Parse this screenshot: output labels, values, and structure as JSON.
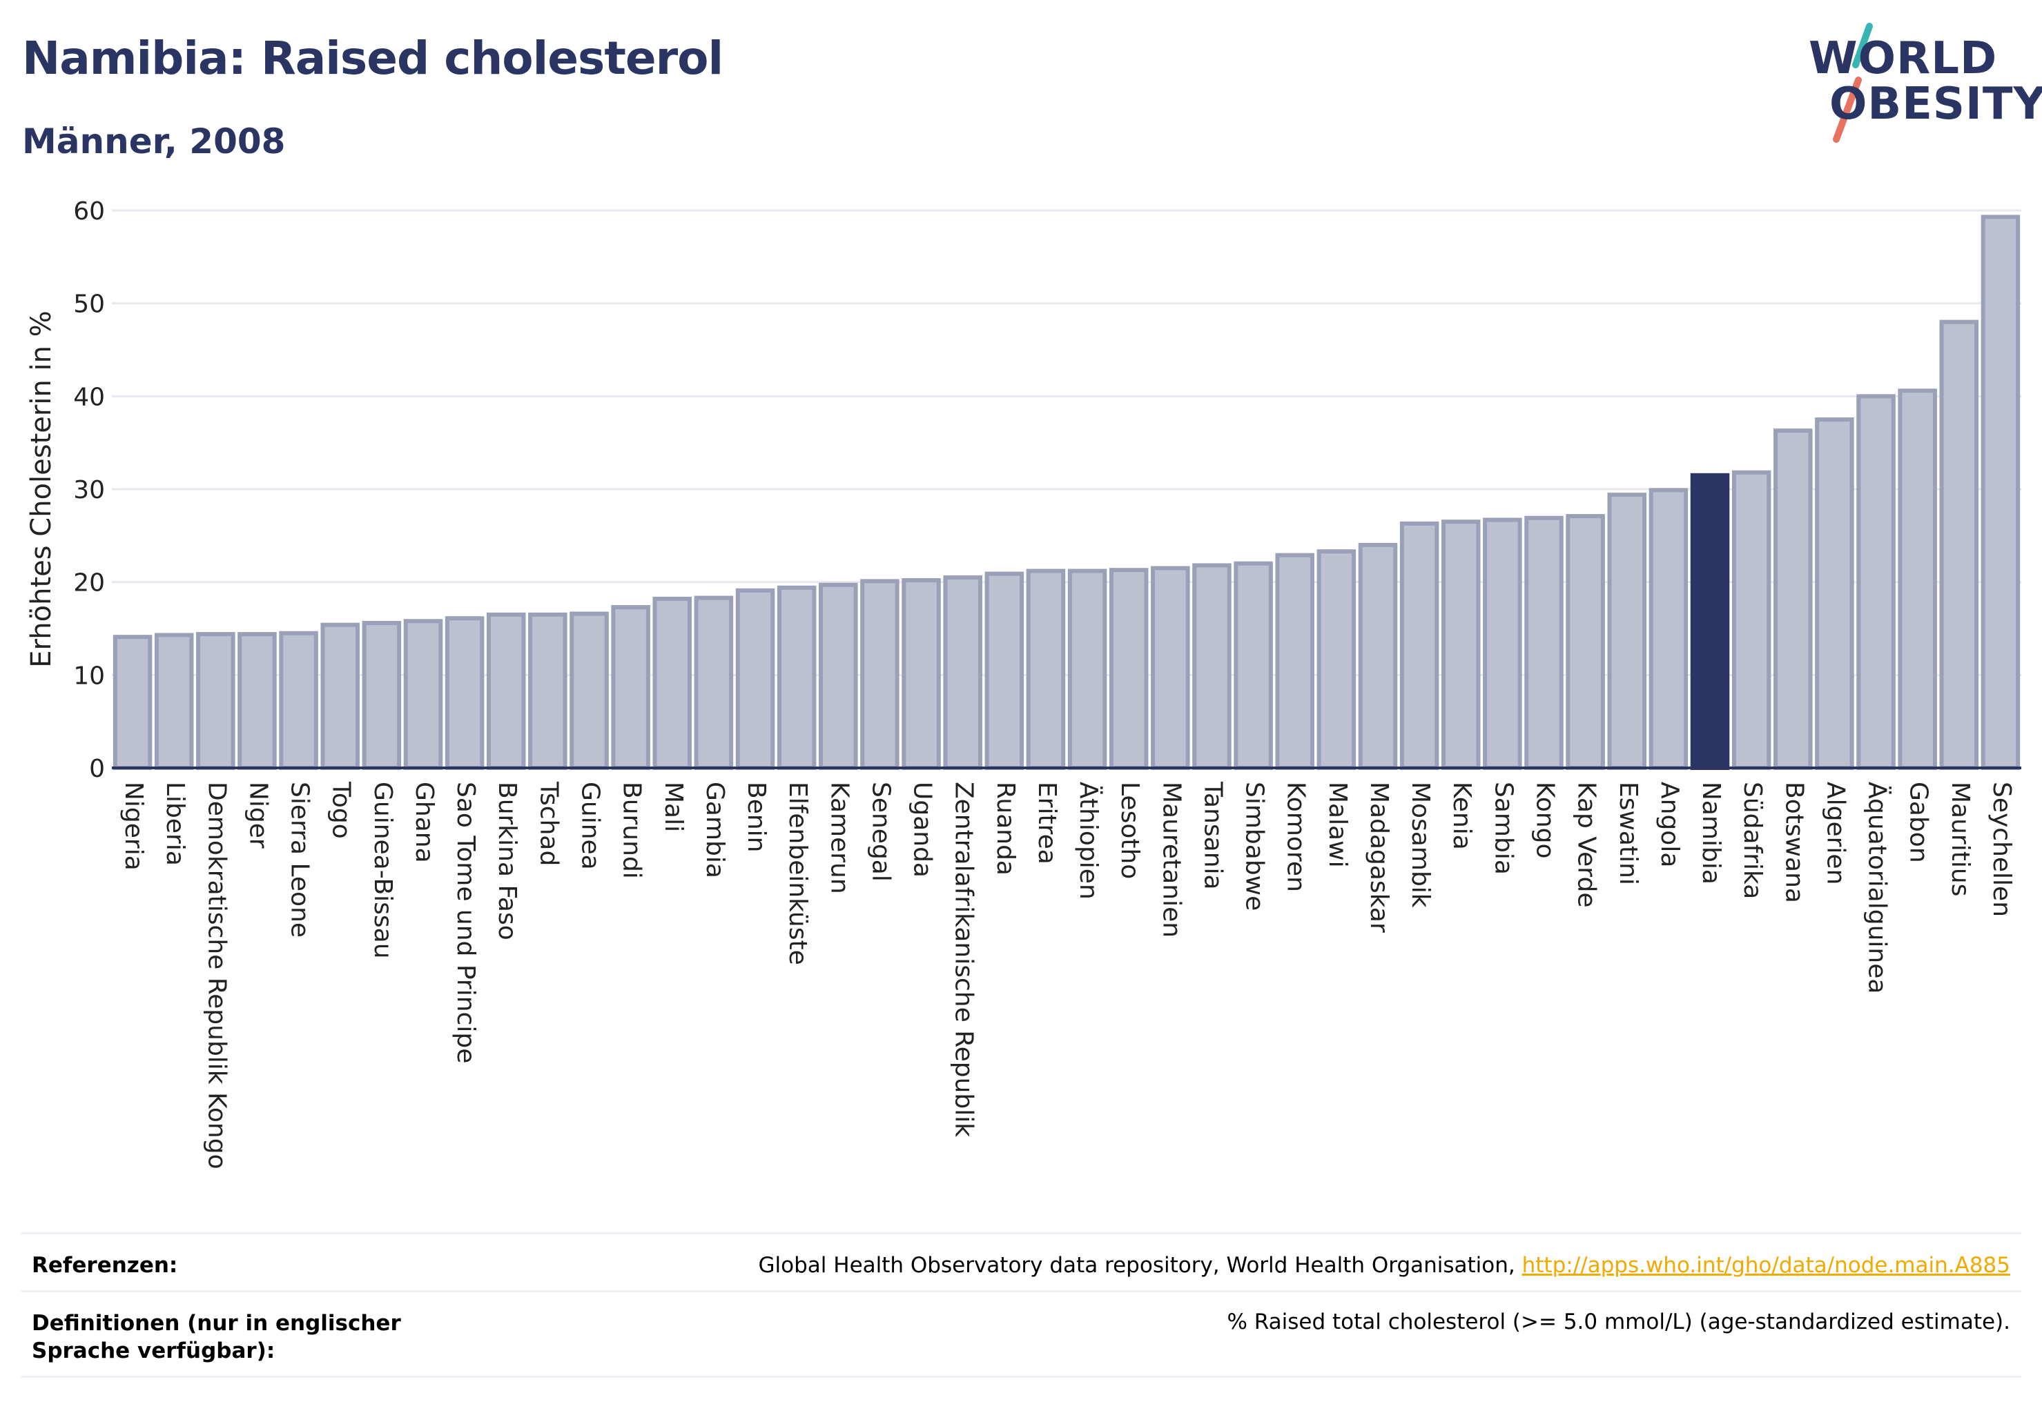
{
  "header": {
    "title": "Namibia: Raised cholesterol",
    "subtitle": "Männer, 2008"
  },
  "logo": {
    "line1": "WORLD",
    "line2": "OBESITY",
    "accent_teal": "#35b6b4",
    "accent_coral": "#e8715f"
  },
  "colors": {
    "bar_default": "#bcc0d0",
    "bar_edge": "#9aa0b8",
    "bar_highlight": "#2b3563",
    "grid": "#e6e8ee",
    "axis": "#2b3563"
  },
  "chart_data": {
    "type": "bar",
    "ylabel": "Erhöhtes Cholesterin in %",
    "ylim": [
      0,
      60
    ],
    "yticks": [
      "0",
      "10",
      "20",
      "30",
      "40",
      "50",
      "60"
    ],
    "highlight": "Namibia",
    "grid": true,
    "categories": [
      "Nigeria",
      "Liberia",
      "Demokratische Republik Kongo",
      "Niger",
      "Sierra Leone",
      "Togo",
      "Guinea-Bissau",
      "Ghana",
      "Sao Tome und Principe",
      "Burkina Faso",
      "Tschad",
      "Guinea",
      "Burundi",
      "Mali",
      "Gambia",
      "Benin",
      "Elfenbeinküste",
      "Kamerun",
      "Senegal",
      "Uganda",
      "Zentralafrikanische Republik",
      "Ruanda",
      "Eritrea",
      "Äthiopien",
      "Lesotho",
      "Mauretanien",
      "Tansania",
      "Simbabwe",
      "Komoren",
      "Malawi",
      "Madagaskar",
      "Mosambik",
      "Kenia",
      "Sambia",
      "Kongo",
      "Kap Verde",
      "Eswatini",
      "Angola",
      "Namibia",
      "Südafrika",
      "Botswana",
      "Algerien",
      "Äquatorialguinea",
      "Gabon",
      "Mauritius",
      "Seychellen"
    ],
    "values": [
      14.1,
      14.3,
      14.4,
      14.4,
      14.5,
      15.4,
      15.6,
      15.8,
      16.1,
      16.5,
      16.5,
      16.6,
      17.3,
      18.2,
      18.3,
      19.1,
      19.4,
      19.7,
      20.1,
      20.2,
      20.5,
      20.9,
      21.2,
      21.2,
      21.3,
      21.5,
      21.8,
      22.0,
      22.9,
      23.3,
      24.0,
      26.3,
      26.5,
      26.7,
      26.9,
      27.1,
      29.4,
      29.9,
      31.5,
      31.8,
      36.3,
      37.5,
      40.0,
      40.6,
      48.0,
      59.3
    ]
  },
  "footer": {
    "ref_label": "Referenzen:",
    "ref_text": "Global Health Observatory data repository, World Health Organisation, ",
    "ref_link": "http://apps.who.int/gho/data/node.main.A885",
    "def_label": "Definitionen (nur in englischer Sprache verfügbar):",
    "def_text": "% Raised total cholesterol (>= 5.0 mmol/L) (age-standardized estimate)."
  }
}
